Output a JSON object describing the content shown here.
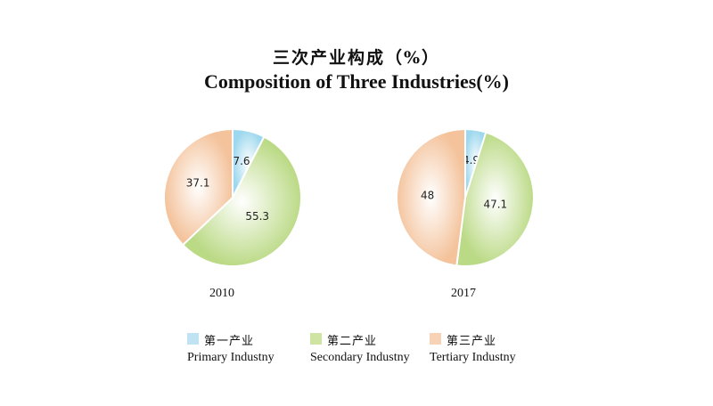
{
  "title_cn": "三次产业构成（%）",
  "title_en": "Composition of Three Industries(%)",
  "legend": [
    {
      "cn": "第一产业",
      "en": "Primary Industny",
      "color": "#bfe3f2"
    },
    {
      "cn": "第二产业",
      "en": "Secondary Industny",
      "color": "#cfe3a3"
    },
    {
      "cn": "第三产业",
      "en": "Tertiary Industny",
      "color": "#f7d2b4"
    }
  ],
  "chart_data": [
    {
      "type": "pie",
      "title": "2010",
      "categories": [
        "第一产业",
        "第二产业",
        "第三产业"
      ],
      "values": [
        7.6,
        55.3,
        37.1
      ],
      "labels": [
        "7.6",
        "55.3",
        "37.1"
      ]
    },
    {
      "type": "pie",
      "title": "2017",
      "categories": [
        "第一产业",
        "第二产业",
        "第三产业"
      ],
      "values": [
        4.9,
        47.1,
        48
      ],
      "labels": [
        "4.9",
        "47.1",
        "48"
      ]
    }
  ]
}
